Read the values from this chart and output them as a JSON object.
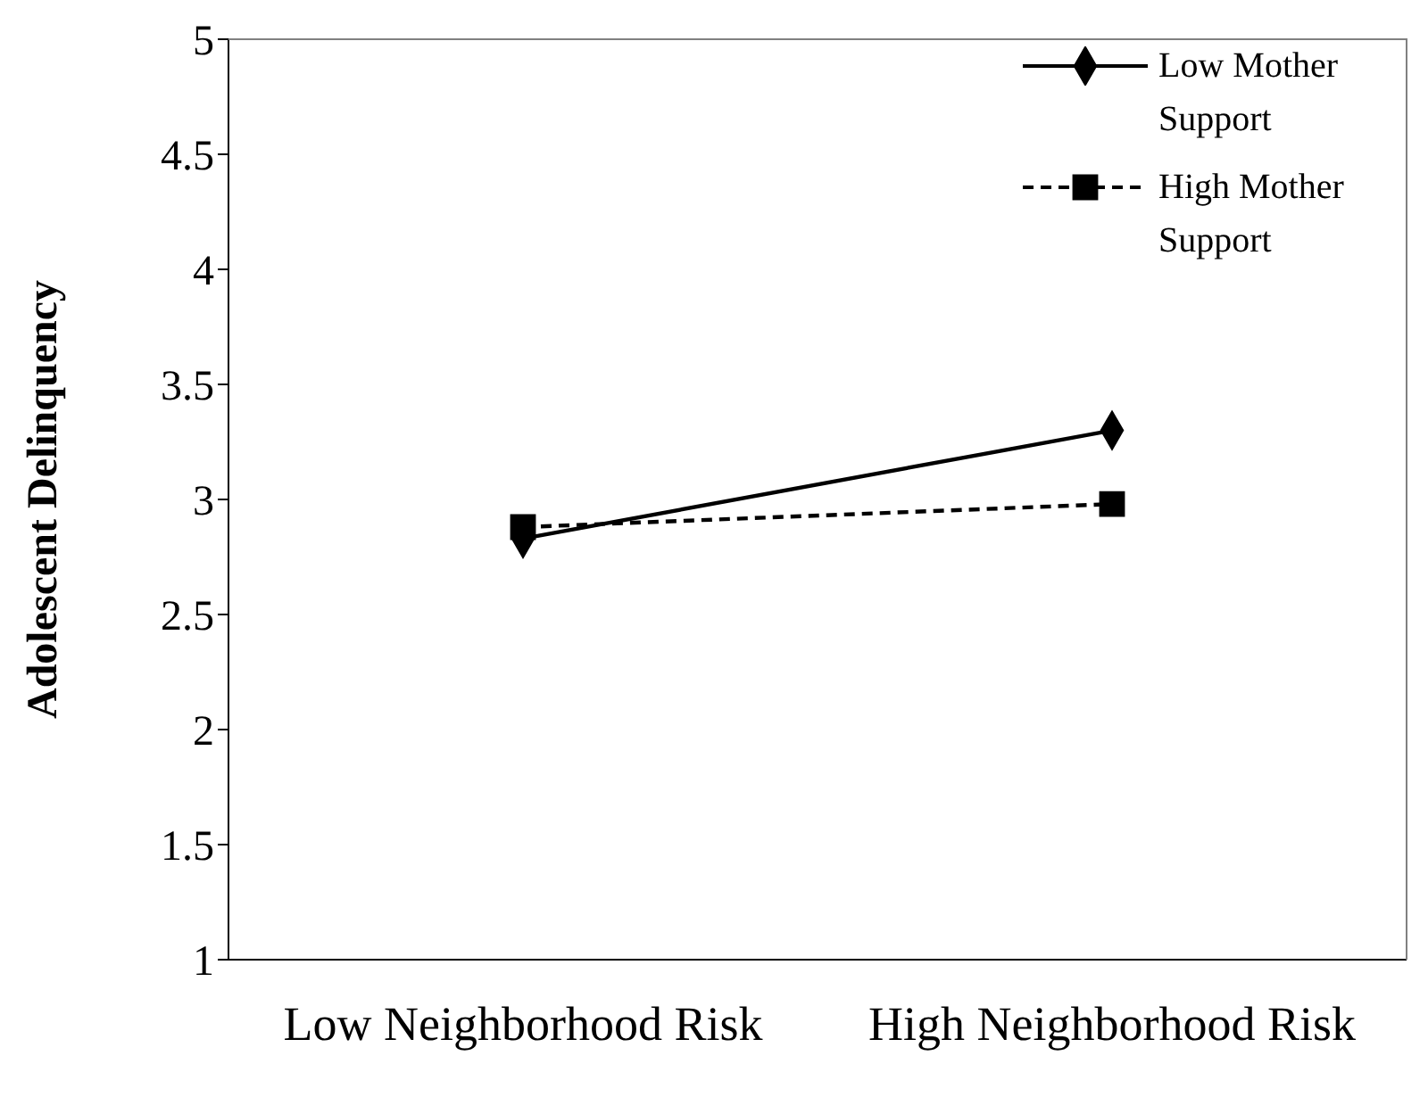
{
  "chart_data": {
    "type": "line",
    "ylabel": "Adolescent Delinquency",
    "categories": [
      "Low Neighborhood Risk",
      "High Neighborhood Risk"
    ],
    "series": [
      {
        "name": "Low Mother Support",
        "color": "#000000",
        "values": [
          2.83,
          3.3
        ],
        "marker": "diamond",
        "line_style": "solid"
      },
      {
        "name": "High Mother Support",
        "color": "#000000",
        "values": [
          2.88,
          2.98
        ],
        "marker": "square",
        "line_style": "dashed"
      }
    ],
    "ylim": [
      1,
      5
    ],
    "yticks": [
      1,
      1.5,
      2,
      2.5,
      3,
      3.5,
      4,
      4.5,
      5
    ],
    "grid": false,
    "legend": "top right"
  }
}
